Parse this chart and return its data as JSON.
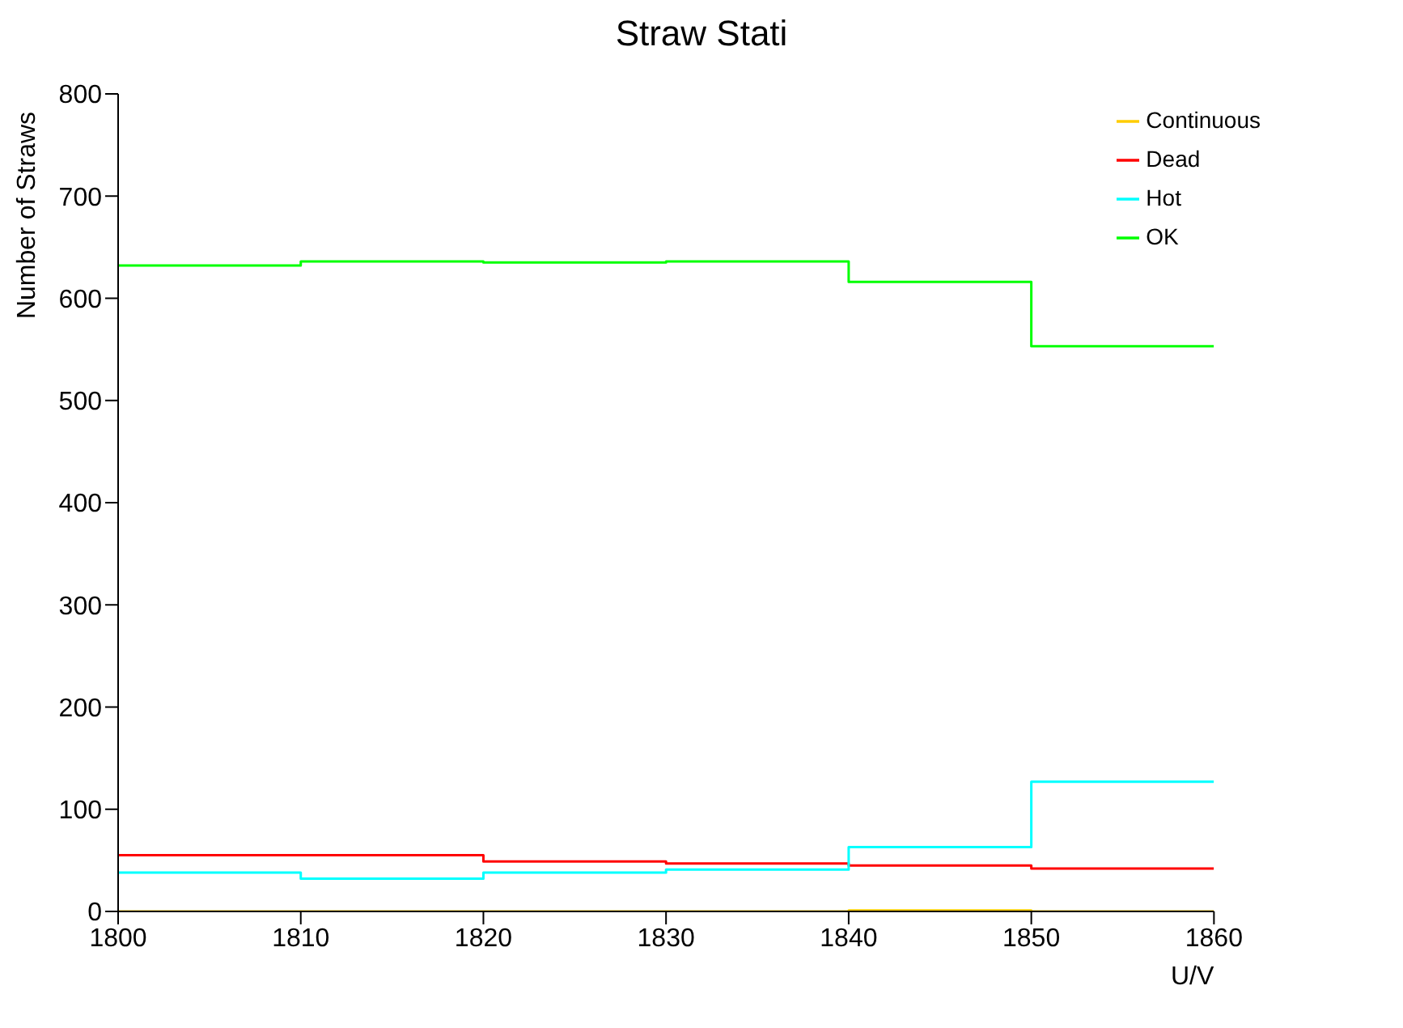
{
  "chart_data": {
    "type": "histogram",
    "title": "Straw Stati",
    "xlabel": "U/V",
    "ylabel": "Number of Straws",
    "bins": [
      1800,
      1810,
      1820,
      1830,
      1840,
      1850,
      1860
    ],
    "series": [
      {
        "name": "OK",
        "color": "#00ff00",
        "values": [
          632,
          636,
          635,
          636,
          616,
          553
        ]
      },
      {
        "name": "Dead",
        "color": "#ff0000",
        "values": [
          55,
          55,
          49,
          47,
          45,
          42
        ]
      },
      {
        "name": "Hot",
        "color": "#00ffff",
        "values": [
          38,
          32,
          38,
          41,
          63,
          127
        ]
      },
      {
        "name": "Continuous",
        "color": "#ffcc00",
        "values": [
          0,
          0,
          0,
          0,
          1,
          0
        ]
      }
    ],
    "xlim": [
      1800,
      1860
    ],
    "xticks": [
      1800,
      1810,
      1820,
      1830,
      1840,
      1850,
      1860
    ],
    "ylim": [
      0,
      800
    ],
    "yticks": [
      0,
      100,
      200,
      300,
      400,
      500,
      600,
      700,
      800
    ],
    "grid": false,
    "legend": "top right"
  }
}
